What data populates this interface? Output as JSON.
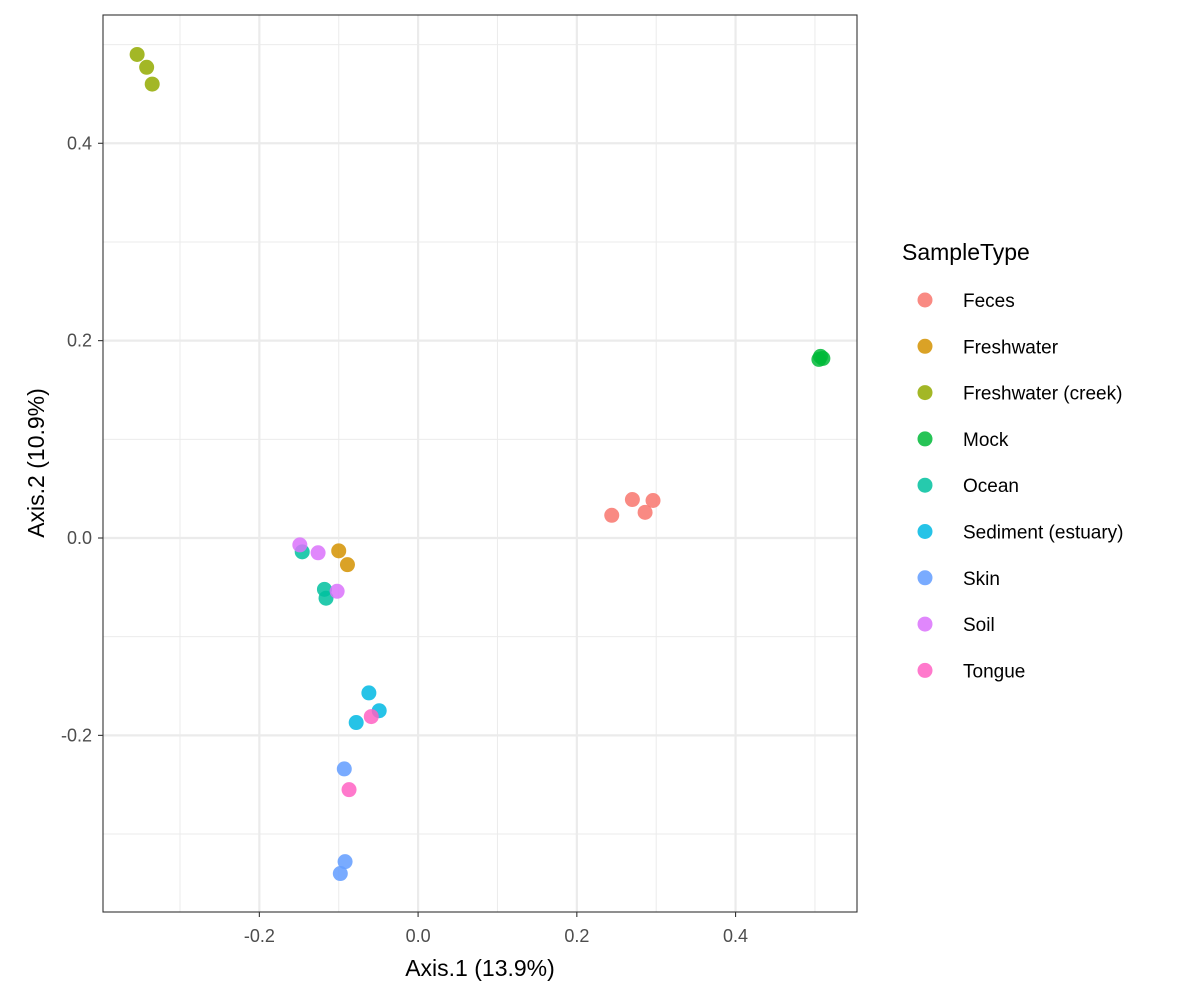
{
  "chart_data": {
    "type": "scatter",
    "xlabel": "Axis.1 (13.9%)",
    "ylabel": "Axis.2 (10.9%)",
    "xlim": [
      -0.397,
      0.553
    ],
    "ylim": [
      -0.379,
      0.53
    ],
    "x_ticks": [
      -0.2,
      0.0,
      0.2,
      0.4
    ],
    "x_tick_labels": [
      "-0.2",
      "0.0",
      "0.2",
      "0.4"
    ],
    "y_ticks": [
      -0.2,
      0.0,
      0.2,
      0.4
    ],
    "y_tick_labels": [
      "-0.2",
      "0.0",
      "0.2",
      "0.4"
    ],
    "grid": true,
    "legend_title": "SampleType",
    "legend_position": "right",
    "series": [
      {
        "name": "Feces",
        "color": "#F8766D",
        "x": [
          0.244,
          0.27,
          0.286,
          0.296
        ],
        "y": [
          0.023,
          0.039,
          0.026,
          0.038
        ]
      },
      {
        "name": "Freshwater",
        "color": "#D39200",
        "x": [
          -0.1,
          -0.089
        ],
        "y": [
          -0.013,
          -0.027
        ]
      },
      {
        "name": "Freshwater (creek)",
        "color": "#93AA00",
        "x": [
          -0.354,
          -0.342,
          -0.335
        ],
        "y": [
          0.49,
          0.477,
          0.46
        ]
      },
      {
        "name": "Mock",
        "color": "#00BA38",
        "x": [
          0.507,
          0.51,
          0.505
        ],
        "y": [
          0.184,
          0.182,
          0.181
        ]
      },
      {
        "name": "Ocean",
        "color": "#00C19F",
        "x": [
          -0.146,
          -0.118,
          -0.116
        ],
        "y": [
          -0.014,
          -0.052,
          -0.061
        ]
      },
      {
        "name": "Sediment (estuary)",
        "color": "#00B9E3",
        "x": [
          -0.062,
          -0.049,
          -0.078
        ],
        "y": [
          -0.157,
          -0.175,
          -0.187
        ]
      },
      {
        "name": "Skin",
        "color": "#619CFF",
        "x": [
          -0.093,
          -0.092,
          -0.098
        ],
        "y": [
          -0.234,
          -0.328,
          -0.34
        ]
      },
      {
        "name": "Soil",
        "color": "#DB72FB",
        "x": [
          -0.149,
          -0.126,
          -0.102
        ],
        "y": [
          -0.007,
          -0.015,
          -0.054
        ]
      },
      {
        "name": "Tongue",
        "color": "#FF61C3",
        "x": [
          -0.059,
          -0.087
        ],
        "y": [
          -0.181,
          -0.255
        ]
      }
    ]
  }
}
